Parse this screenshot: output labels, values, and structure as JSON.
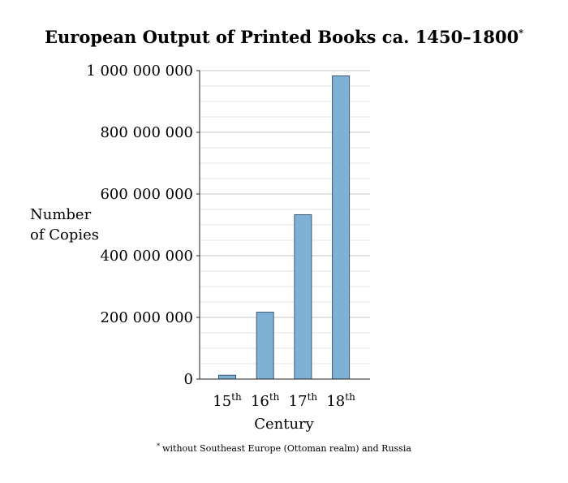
{
  "chart_data": {
    "type": "bar",
    "title": "European Output of Printed Books ca. 1450–1800",
    "title_mark": "*",
    "xlabel": "Century",
    "ylabel_lines": [
      "Number",
      "of Copies"
    ],
    "categories": [
      {
        "base": "15",
        "sup": "th"
      },
      {
        "base": "16",
        "sup": "th"
      },
      {
        "base": "17",
        "sup": "th"
      },
      {
        "base": "18",
        "sup": "th"
      }
    ],
    "values": [
      12600000,
      217000000,
      533000000,
      983000000
    ],
    "ylim": [
      0,
      1000000000
    ],
    "y_ticks": [
      0,
      200000000,
      400000000,
      600000000,
      800000000,
      1000000000
    ],
    "y_tick_labels": [
      "0",
      "200 000 000",
      "400 000 000",
      "600 000 000",
      "800 000 000",
      "1 000 000 000"
    ],
    "minor_grid_step": 50000000,
    "grid": true,
    "bar_color": "#7fb0d5",
    "bar_edge_color": "#3c5a72",
    "footnote_mark": "*",
    "footnote": "without Southeast Europe (Ottoman realm) and Russia"
  }
}
